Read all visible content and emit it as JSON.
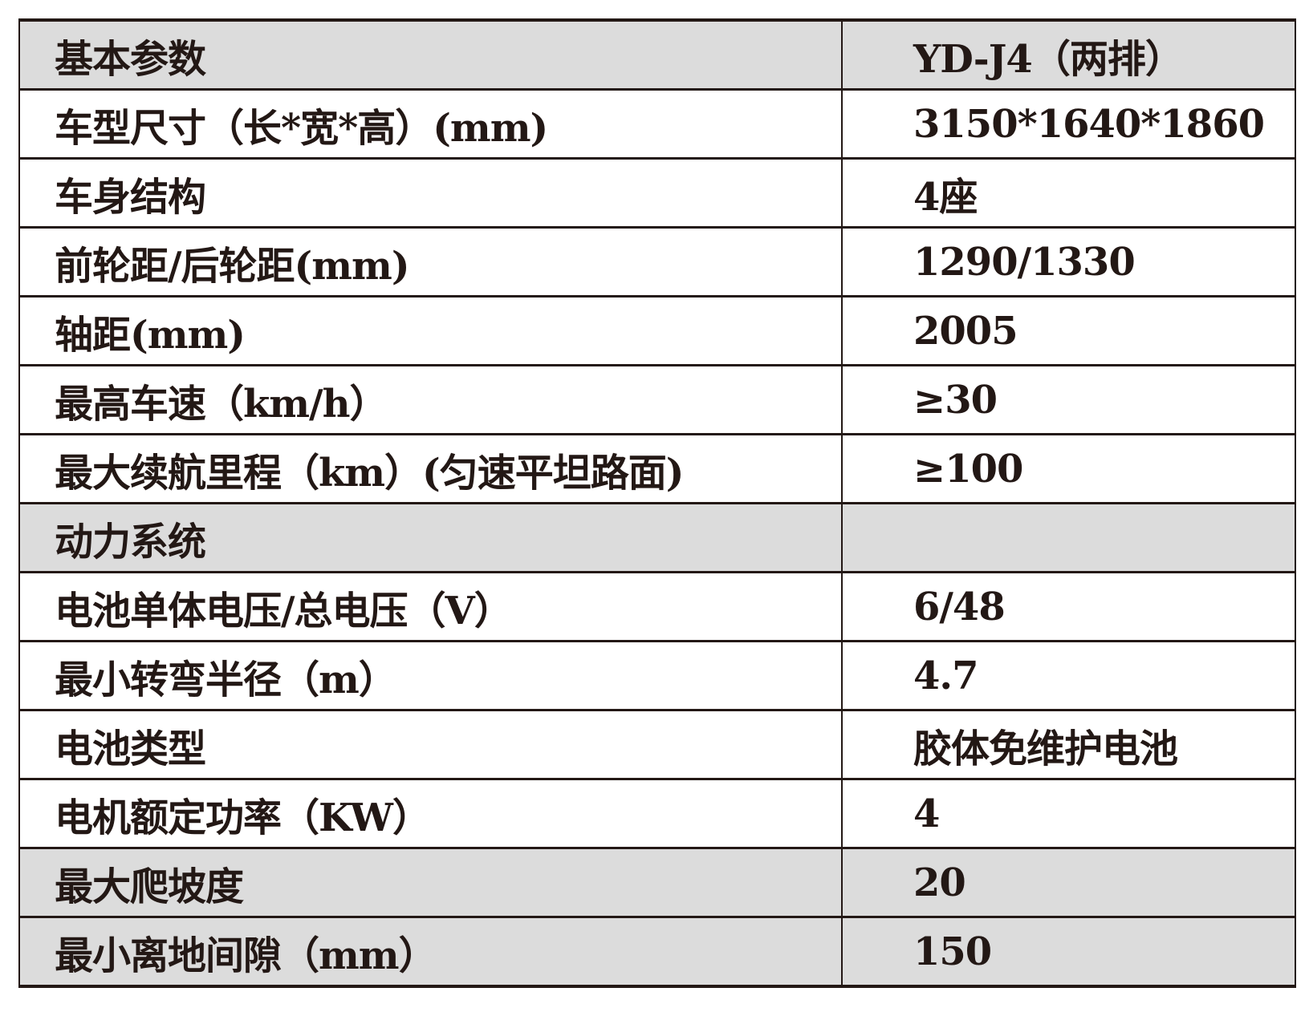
{
  "table": {
    "rows": [
      {
        "label": "基本参数",
        "value": "YD-J4（两排）",
        "shaded": true
      },
      {
        "label": "车型尺寸（长*宽*高）(mm)",
        "value": "3150*1640*1860",
        "shaded": false
      },
      {
        "label": "车身结构",
        "value": "4座",
        "shaded": false
      },
      {
        "label": "前轮距/后轮距(mm)",
        "value": "1290/1330",
        "shaded": false
      },
      {
        "label": "轴距(mm)",
        "value": "2005",
        "shaded": false
      },
      {
        "label": "最高车速（km/h）",
        "value": "≥30",
        "shaded": false
      },
      {
        "label": "最大续航里程（km）(匀速平坦路面)",
        "value": "≥100",
        "shaded": false
      },
      {
        "label": "动力系统",
        "value": "",
        "shaded": true
      },
      {
        "label": "电池单体电压/总电压（V）",
        "value": "6/48",
        "shaded": false
      },
      {
        "label": "最小转弯半径（m）",
        "value": "4.7",
        "shaded": false
      },
      {
        "label": "电池类型",
        "value": "胶体免维护电池",
        "shaded": false
      },
      {
        "label": "电机额定功率（KW）",
        "value": "4",
        "shaded": false
      },
      {
        "label": "最大爬坡度",
        "value": "20",
        "shaded": true
      },
      {
        "label": "最小离地间隙（mm）",
        "value": "150",
        "shaded": true
      }
    ],
    "shade_color": "#dcdcdc"
  }
}
